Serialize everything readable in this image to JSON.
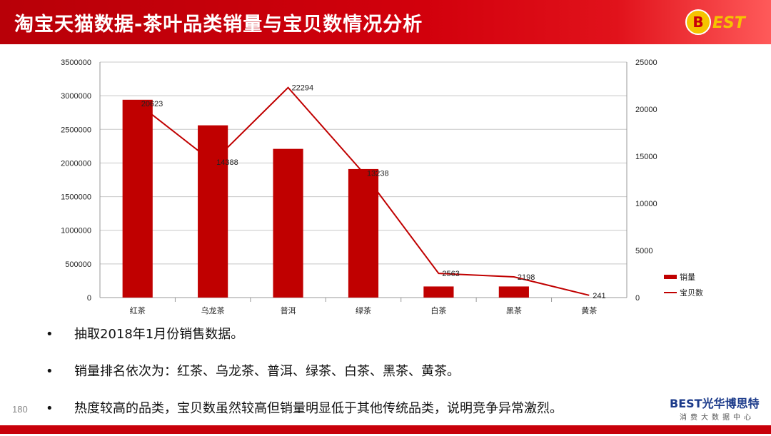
{
  "header": {
    "title": "淘宝天猫数据-茶叶品类销量与宝贝数情况分析",
    "brand_logo_text": "BEST"
  },
  "colors": {
    "header_red": "#c8000a",
    "bar_red": "#c00000",
    "line_red": "#c00000"
  },
  "chart_data": {
    "type": "bar",
    "categories": [
      "红茶",
      "乌龙茶",
      "普洱",
      "绿茶",
      "白茶",
      "黑茶",
      "黄茶"
    ],
    "series": [
      {
        "name": "销量",
        "type": "bar",
        "axis": "left",
        "values": [
          2940000,
          2560000,
          2210000,
          1910000,
          165000,
          165000,
          0
        ]
      },
      {
        "name": "宝贝数",
        "type": "line",
        "axis": "right",
        "values": [
          20623,
          14388,
          22294,
          13238,
          2563,
          2198,
          241
        ],
        "data_labels": [
          "20623",
          "14388",
          "22294",
          "13238",
          "2563",
          "2198",
          "241"
        ]
      }
    ],
    "y_left": {
      "min": 0,
      "max": 3500000,
      "step": 500000,
      "ticks": [
        "0",
        "500000",
        "1000000",
        "1500000",
        "2000000",
        "2500000",
        "3000000",
        "3500000"
      ]
    },
    "y_right": {
      "min": 0,
      "max": 25000,
      "step": 5000,
      "ticks": [
        "0",
        "5000",
        "10000",
        "15000",
        "20000",
        "25000"
      ]
    },
    "grid": true,
    "legend_position": "right-bottom"
  },
  "bullets": [
    "抽取2018年1月份销售数据。",
    "销量排名依次为：红茶、乌龙茶、普洱、绿茶、白茶、黑茶、黄茶。",
    "热度较高的品类，宝贝数虽然较高但销量明显低于其他传统品类，说明竞争异常激烈。"
  ],
  "bullet_symbol": "•",
  "page_number": "180",
  "footer": {
    "logo_text": "BEST光华博思特",
    "logo_subtitle": "消费大数据中心"
  }
}
